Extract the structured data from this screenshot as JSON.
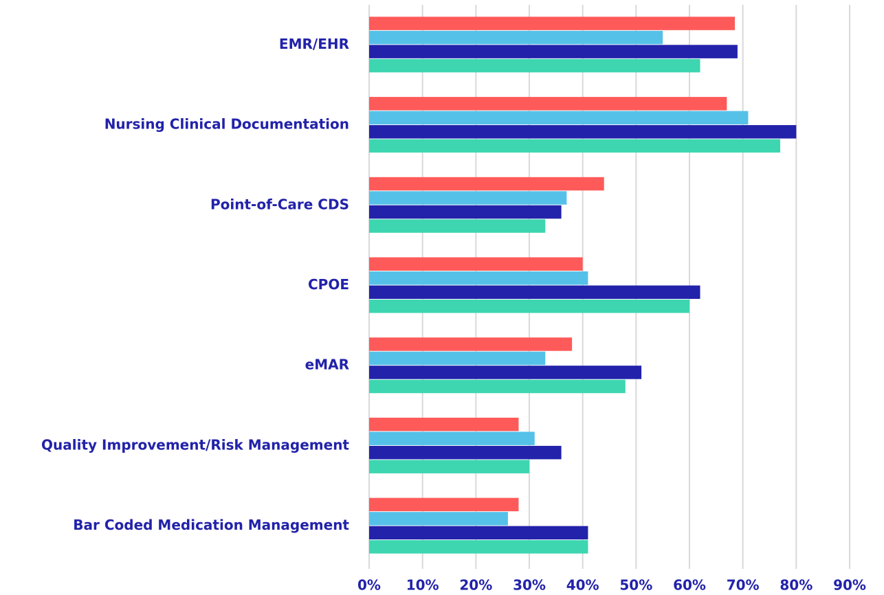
{
  "chart_data": {
    "type": "hbar",
    "categories": [
      "EMR/EHR",
      "Nursing Clinical Documentation",
      "Point-of-Care CDS",
      "CPOE",
      "eMAR",
      "Quality Improvement/Risk Management",
      "Bar Coded Medication Management"
    ],
    "series": [
      {
        "color": "#ff5a5a",
        "values": [
          68.5,
          67,
          44,
          40,
          38,
          28,
          28
        ]
      },
      {
        "color": "#56c1e8",
        "values": [
          55,
          71,
          37,
          41,
          33,
          31,
          26
        ]
      },
      {
        "color": "#2222aa",
        "values": [
          69,
          80,
          36,
          62,
          51,
          36,
          41
        ]
      },
      {
        "color": "#3dd6b0",
        "values": [
          62,
          77,
          33,
          60,
          48,
          30,
          41
        ]
      }
    ],
    "xlim": [
      0,
      90
    ],
    "xticks": [
      {
        "value": 0,
        "label": "0%"
      },
      {
        "value": 10,
        "label": "10%"
      },
      {
        "value": 20,
        "label": "20%"
      },
      {
        "value": 30,
        "label": "30%"
      },
      {
        "value": 40,
        "label": "40%"
      },
      {
        "value": 50,
        "label": "50%"
      },
      {
        "value": 60,
        "label": "60%"
      },
      {
        "value": 70,
        "label": "70%"
      },
      {
        "value": 80,
        "label": "80%"
      },
      {
        "value": 90,
        "label": "90%"
      }
    ],
    "grid": true
  }
}
